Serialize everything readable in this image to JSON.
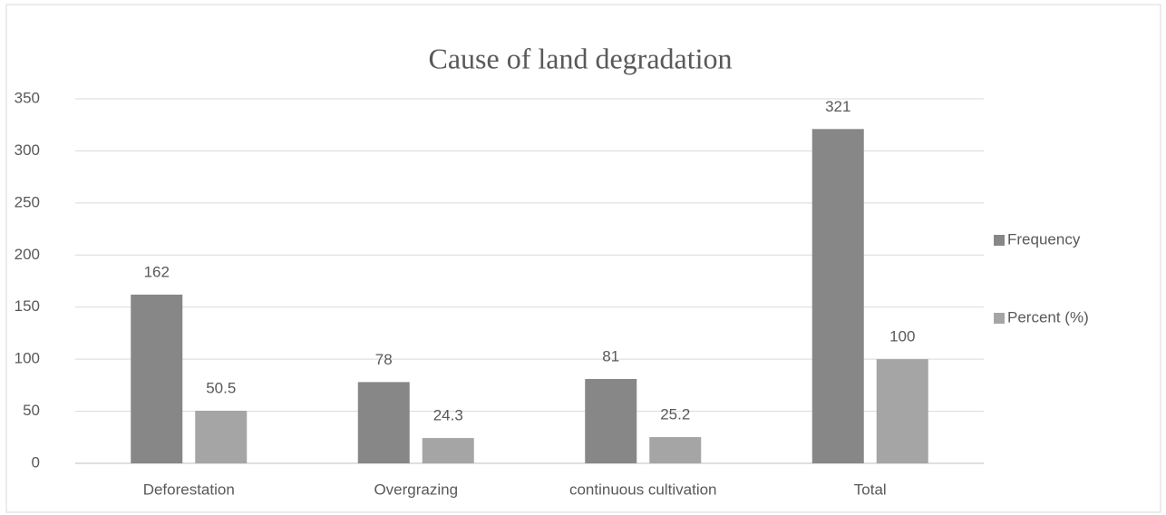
{
  "chart_data": {
    "type": "bar",
    "title": "Cause of  land degradation",
    "categories": [
      "Deforestation",
      "Overgrazing",
      "continuous cultivation",
      "Total"
    ],
    "series": [
      {
        "name": "Frequency",
        "color": "#878787",
        "values": [
          162,
          78,
          81,
          321
        ]
      },
      {
        "name": "Percent (%)",
        "color": "#a5a5a5",
        "values": [
          50.5,
          24.3,
          25.2,
          100
        ]
      }
    ],
    "ylim": [
      0,
      350
    ],
    "yticks": [
      0,
      50,
      100,
      150,
      200,
      250,
      300,
      350
    ],
    "grid": true,
    "legend": "right"
  }
}
